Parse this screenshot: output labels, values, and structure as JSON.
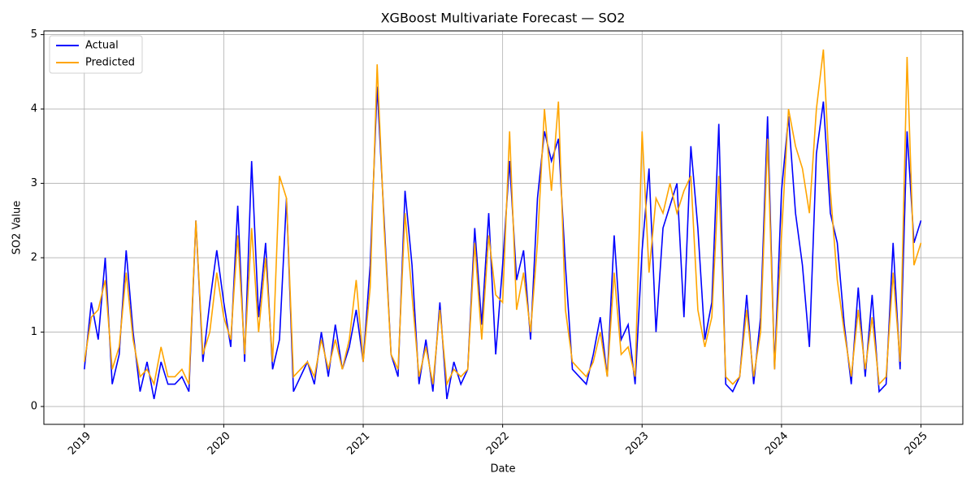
{
  "chart_data": {
    "type": "line",
    "title": "XGBoost Multivariate Forecast — SO2",
    "xlabel": "Date",
    "ylabel": "SO2 Value",
    "x": [
      2019,
      2019.05,
      2019.1,
      2019.15,
      2019.2,
      2019.25,
      2019.3,
      2019.35,
      2019.4,
      2019.45,
      2019.5,
      2019.55,
      2019.6,
      2019.65,
      2019.7,
      2019.75,
      2019.8,
      2019.85,
      2019.9,
      2019.95,
      2020,
      2020.05,
      2020.1,
      2020.15,
      2020.2,
      2020.25,
      2020.3,
      2020.35,
      2020.4,
      2020.45,
      2020.5,
      2020.55,
      2020.6,
      2020.65,
      2020.7,
      2020.75,
      2020.8,
      2020.85,
      2020.9,
      2020.95,
      2021,
      2021.05,
      2021.1,
      2021.15,
      2021.2,
      2021.25,
      2021.3,
      2021.35,
      2021.4,
      2021.45,
      2021.5,
      2021.55,
      2021.6,
      2021.65,
      2021.7,
      2021.75,
      2021.8,
      2021.85,
      2021.9,
      2021.95,
      2022,
      2022.05,
      2022.1,
      2022.15,
      2022.2,
      2022.25,
      2022.3,
      2022.35,
      2022.4,
      2022.45,
      2022.5,
      2022.55,
      2022.6,
      2022.65,
      2022.7,
      2022.75,
      2022.8,
      2022.85,
      2022.9,
      2022.95,
      2023,
      2023.05,
      2023.1,
      2023.15,
      2023.2,
      2023.25,
      2023.3,
      2023.35,
      2023.4,
      2023.45,
      2023.5,
      2023.55,
      2023.6,
      2023.65,
      2023.7,
      2023.75,
      2023.8,
      2023.85,
      2023.9,
      2023.95,
      2024,
      2024.05,
      2024.1,
      2024.15,
      2024.2,
      2024.25,
      2024.3,
      2024.35,
      2024.4,
      2024.45,
      2024.5,
      2024.55,
      2024.6,
      2024.65,
      2024.7,
      2024.75,
      2024.8,
      2024.85,
      2024.9,
      2024.95,
      2025
    ],
    "series": [
      {
        "name": "Actual",
        "color": "#0000ff",
        "values": [
          0.5,
          1.4,
          0.9,
          2.0,
          0.3,
          0.7,
          2.1,
          1.0,
          0.2,
          0.6,
          0.1,
          0.6,
          0.3,
          0.3,
          0.4,
          0.2,
          2.5,
          0.6,
          1.4,
          2.1,
          1.4,
          0.8,
          2.7,
          0.6,
          3.3,
          1.2,
          2.2,
          0.5,
          0.9,
          2.8,
          0.2,
          0.4,
          0.6,
          0.3,
          1.0,
          0.4,
          1.1,
          0.5,
          0.8,
          1.3,
          0.6,
          1.9,
          4.3,
          2.5,
          0.7,
          0.4,
          2.9,
          1.9,
          0.3,
          0.9,
          0.2,
          1.4,
          0.1,
          0.6,
          0.3,
          0.5,
          2.4,
          1.1,
          2.6,
          0.7,
          1.9,
          3.3,
          1.7,
          2.1,
          0.9,
          2.8,
          3.7,
          3.3,
          3.6,
          1.9,
          0.5,
          0.4,
          0.3,
          0.7,
          1.2,
          0.4,
          2.3,
          0.9,
          1.1,
          0.3,
          2.1,
          3.2,
          1.0,
          2.4,
          2.7,
          3.0,
          1.2,
          3.5,
          2.4,
          0.9,
          1.4,
          3.8,
          0.3,
          0.2,
          0.4,
          1.5,
          0.3,
          1.2,
          3.9,
          0.5,
          2.9,
          3.9,
          2.6,
          1.9,
          0.8,
          3.4,
          4.1,
          2.6,
          2.2,
          1.1,
          0.3,
          1.6,
          0.4,
          1.5,
          0.2,
          0.3,
          2.2,
          0.5,
          3.7,
          2.2,
          2.5
        ]
      },
      {
        "name": "Predicted",
        "color": "#ffa500",
        "values": [
          0.6,
          1.2,
          1.3,
          1.7,
          0.5,
          0.8,
          1.8,
          0.9,
          0.4,
          0.5,
          0.3,
          0.8,
          0.4,
          0.4,
          0.5,
          0.3,
          2.5,
          0.7,
          1.0,
          1.8,
          1.2,
          0.9,
          2.3,
          0.7,
          2.4,
          1.0,
          2.0,
          0.6,
          3.1,
          2.8,
          0.4,
          0.5,
          0.6,
          0.4,
          0.9,
          0.5,
          0.9,
          0.5,
          0.9,
          1.7,
          0.6,
          1.6,
          4.6,
          2.4,
          0.7,
          0.5,
          2.6,
          1.5,
          0.4,
          0.8,
          0.3,
          1.3,
          0.3,
          0.5,
          0.4,
          0.5,
          2.2,
          0.9,
          2.3,
          1.5,
          1.4,
          3.7,
          1.3,
          1.8,
          1.0,
          2.2,
          4.0,
          2.9,
          4.1,
          1.3,
          0.6,
          0.5,
          0.4,
          0.6,
          1.0,
          0.4,
          1.8,
          0.7,
          0.8,
          0.4,
          3.7,
          1.8,
          2.8,
          2.6,
          3.0,
          2.6,
          2.9,
          3.1,
          1.3,
          0.8,
          1.2,
          3.1,
          0.4,
          0.3,
          0.4,
          1.3,
          0.4,
          1.0,
          3.6,
          0.5,
          2.3,
          4.0,
          3.5,
          3.2,
          2.6,
          4.0,
          4.8,
          2.9,
          1.7,
          1.0,
          0.4,
          1.3,
          0.5,
          1.2,
          0.3,
          0.4,
          1.8,
          0.6,
          4.7,
          1.9,
          2.2
        ]
      }
    ],
    "xlim": [
      2018.71,
      2025.3
    ],
    "xticks": [
      2019,
      2020,
      2021,
      2022,
      2023,
      2024,
      2025
    ],
    "ylim": [
      -0.24,
      5.05
    ],
    "yticks": [
      0,
      1,
      2,
      3,
      4,
      5
    ],
    "grid": true,
    "legend": "upper left"
  }
}
